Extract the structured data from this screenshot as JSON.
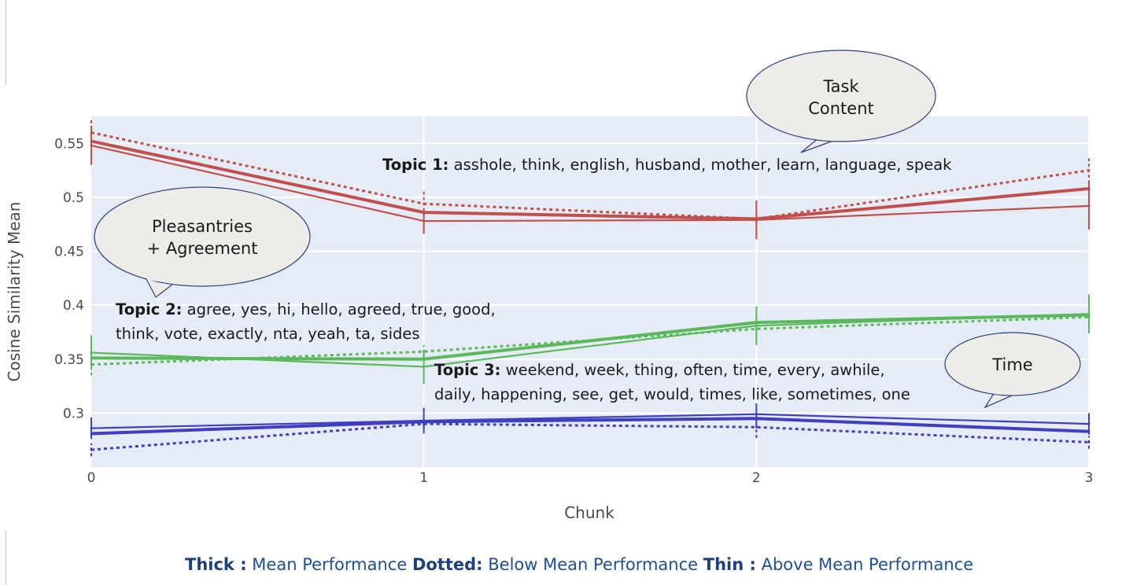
{
  "chart_data": {
    "type": "line",
    "xlabel": "Chunk",
    "ylabel": "Cosine Similarity Mean",
    "x": [
      0,
      1,
      2,
      3
    ],
    "x_ticks": [
      "0",
      "1",
      "2",
      "3"
    ],
    "y_ticks": [
      "0.3",
      "0.35",
      "0.4",
      "0.45",
      "0.5",
      "0.55"
    ],
    "xlim": [
      0,
      3
    ],
    "ylim": [
      0.25,
      0.575
    ],
    "grid": true,
    "series": [
      {
        "group": "topic1",
        "style": "thick",
        "color": "#c0504d",
        "values": [
          0.552,
          0.486,
          0.48,
          0.508
        ],
        "err": [
          0.0,
          0.0,
          0.0,
          0.0
        ]
      },
      {
        "group": "topic1",
        "style": "thin",
        "color": "#c0504d",
        "values": [
          0.548,
          0.478,
          0.479,
          0.492
        ],
        "err": [
          0.018,
          0.012,
          0.018,
          0.022
        ]
      },
      {
        "group": "topic1",
        "style": "dotted",
        "color": "#c0504d",
        "values": [
          0.56,
          0.494,
          0.48,
          0.525
        ],
        "err": [
          0.012,
          0.012,
          0.004,
          0.012
        ]
      },
      {
        "group": "topic2",
        "style": "thick",
        "color": "#5cb85c",
        "values": [
          0.351,
          0.35,
          0.384,
          0.391
        ],
        "err": [
          0.0,
          0.0,
          0.0,
          0.0
        ]
      },
      {
        "group": "topic2",
        "style": "thin",
        "color": "#5cb85c",
        "values": [
          0.356,
          0.343,
          0.381,
          0.392
        ],
        "err": [
          0.016,
          0.016,
          0.018,
          0.018
        ]
      },
      {
        "group": "topic2",
        "style": "dotted",
        "color": "#5cb85c",
        "values": [
          0.345,
          0.357,
          0.378,
          0.389
        ],
        "err": [
          0.01,
          0.006,
          0.012,
          0.004
        ]
      },
      {
        "group": "topic3",
        "style": "thick",
        "color": "#3f3fbf",
        "values": [
          0.281,
          0.292,
          0.295,
          0.283
        ],
        "err": [
          0.0,
          0.0,
          0.0,
          0.0
        ]
      },
      {
        "group": "topic3",
        "style": "thin",
        "color": "#3f3fbf",
        "values": [
          0.286,
          0.293,
          0.299,
          0.29
        ],
        "err": [
          0.01,
          0.012,
          0.01,
          0.01
        ]
      },
      {
        "group": "topic3",
        "style": "dotted",
        "color": "#3f3fbf",
        "values": [
          0.266,
          0.29,
          0.287,
          0.273
        ],
        "err": [
          0.006,
          0.004,
          0.01,
          0.006
        ]
      }
    ],
    "annotations": {
      "topic1": {
        "label": "Topic 1:",
        "text": "asshole, think, english, husband, mother, learn, language, speak"
      },
      "topic2": {
        "label": "Topic 2:",
        "line1": "agree, yes, hi, hello, agreed, true, good,",
        "line2": "think, vote, exactly, nta, yeah, ta, sides"
      },
      "topic3": {
        "label": "Topic 3:",
        "line1": "weekend, week, thing, often, time, every, awhile,",
        "line2": "daily, happening, see, get, would, times, like, sometimes, one"
      }
    },
    "bubbles": {
      "task": {
        "line1": "Task",
        "line2": "Content"
      },
      "pleasantries": {
        "line1": "Pleasantries",
        "line2": "+ Agreement"
      },
      "time": {
        "line1": "Time"
      }
    }
  },
  "legend": {
    "thick_label": "Thick :",
    "thick_text": "Mean Performance",
    "dotted_label": "Dotted:",
    "dotted_text": "Below Mean Performance",
    "thin_label": "Thin :",
    "thin_text": "Above Mean Performance"
  },
  "colors": {
    "plot_bg": "#e5ecf6",
    "bubble_fill": "#eeece9",
    "bubble_stroke": "#2a3f7a"
  }
}
